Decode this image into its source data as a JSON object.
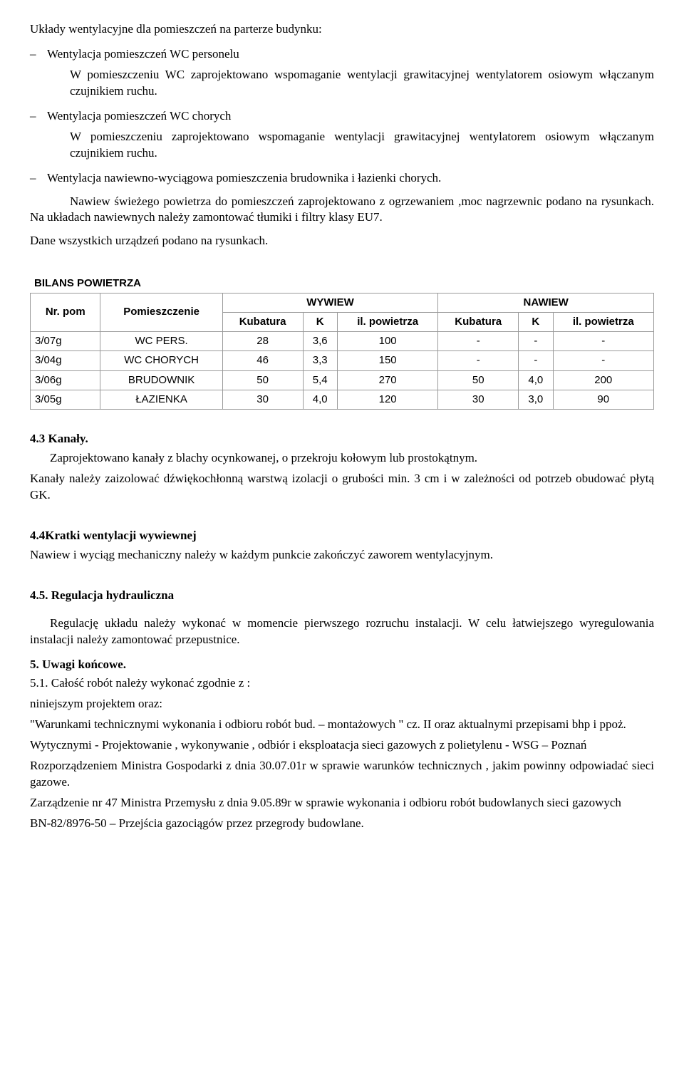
{
  "intro": {
    "line1": "Układy  wentylacyjne dla  pomieszczeń na parterze budynku:",
    "dash": "–"
  },
  "item1": {
    "title": "Wentylacja  pomieszczeń WC  personelu",
    "body": "W pomieszczeniu WC zaprojektowano    wspomaganie wentylacji    grawitacyjnej wentylatorem osiowym włączanym czujnikiem ruchu."
  },
  "item2": {
    "title": "Wentylacja  pomieszczeń WC  chorych",
    "body": "W pomieszczeniu  zaprojektowano   wspomaganie wentylacji    grawitacyjnej wentylatorem osiowym włączanym czujnikiem ruchu."
  },
  "item3": {
    "title": "Wentylacja nawiewno-wyciągowa pomieszczenia brudownika i łazienki chorych.",
    "body1": "Nawiew świeżego powietrza do pomieszczeń zaprojektowano z ogrzewaniem ,moc nagrzewnic podano na rysunkach. Na  układach  nawiewnych  należy zamontować  tłumiki i filtry klasy EU7.",
    "body2": "Dane wszystkich urządzeń podano na rysunkach."
  },
  "table": {
    "title": "BILANS POWIETRZA",
    "headers": {
      "nrpom": "Nr. pom",
      "pomieszczenie": "Pomieszczenie",
      "wywiew": "WYWIEW",
      "nawiew": "NAWIEW",
      "kubatura": "Kubatura",
      "k": "K",
      "ilpow": "il. powietrza"
    },
    "rows": [
      {
        "nr": "3/07g",
        "pom": "WC PERS.",
        "w_kub": "28",
        "w_k": "3,6",
        "w_il": "100",
        "n_kub": "-",
        "n_k": "-",
        "n_il": "-"
      },
      {
        "nr": "3/04g",
        "pom": "WC CHORYCH",
        "w_kub": "46",
        "w_k": "3,3",
        "w_il": "150",
        "n_kub": "-",
        "n_k": "-",
        "n_il": "-"
      },
      {
        "nr": "3/06g",
        "pom": "BRUDOWNIK",
        "w_kub": "50",
        "w_k": "5,4",
        "w_il": "270",
        "n_kub": "50",
        "n_k": "4,0",
        "n_il": "200"
      },
      {
        "nr": "3/05g",
        "pom": "ŁAZIENKA",
        "w_kub": "30",
        "w_k": "4,0",
        "w_il": "120",
        "n_kub": "30",
        "n_k": "3,0",
        "n_il": "90"
      }
    ]
  },
  "s43": {
    "head": "4.3 Kanały.",
    "p1": "Zaprojektowano kanały z blachy ocynkowanej, o przekroju kołowym lub prostokątnym.",
    "p2": "Kanały  należy zaizolować dźwiękochłonną warstwą izolacji o grubości min. 3 cm i w zależności od potrzeb  obudować płytą GK."
  },
  "s44": {
    "head": "4.4Kratki wentylacji  wywiewnej",
    "p1": "Nawiew i wyciąg mechaniczny należy w każdym punkcie zakończyć zaworem wentylacyjnym."
  },
  "s45": {
    "head": "4.5. Regulacja hydrauliczna",
    "p1": "Regulację układu należy wykonać w momencie pierwszego rozruchu instalacji. W celu łatwiejszego wyregulowania instalacji należy zamontować przepustnice."
  },
  "s5": {
    "head": "5. Uwagi końcowe.",
    "l1": "5.1. Całość robót należy wykonać zgodnie z :",
    "l2": "niniejszym projektem oraz:",
    "l3": "\"Warunkami  technicznymi  wykonania  i  odbioru  robót  bud.  –  montażowych  \"  cz.  II  oraz aktualnymi przepisami bhp i ppoż.",
    "l4": "Wytycznymi  -  Projektowanie  ,  wykonywanie  ,  odbiór  i  eksploatacja  sieci  gazowych  z polietylenu - WSG – Poznań",
    "l5": "Rozporządzeniem  Ministra  Gospodarki   z dnia 30.07.01r w sprawie warunków technicznych , jakim powinny odpowiadać   sieci gazowe.",
    "l6": "Zarządzenie nr 47 Ministra Przemysłu z dnia 9.05.89r w sprawie wykonania i odbioru robót budowlanych sieci gazowych",
    "l7": "BN-82/8976-50 – Przejścia gazociągów przez przegrody budowlane."
  }
}
